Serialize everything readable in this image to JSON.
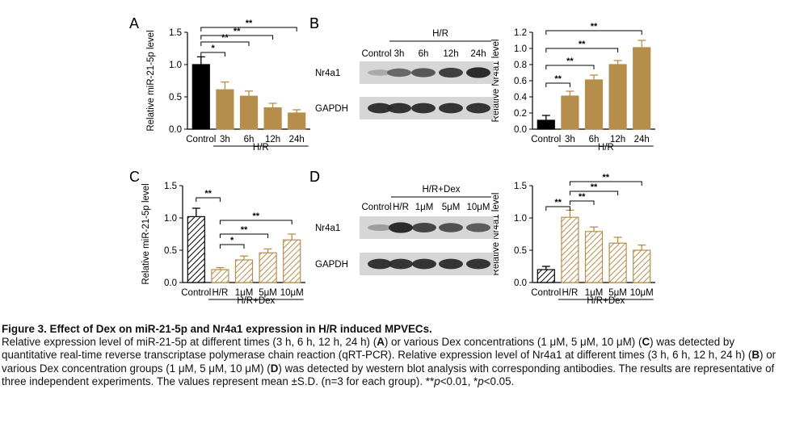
{
  "colors": {
    "control": "#000000",
    "treatment": "#b68e4c",
    "bar_edge": "#8a6a36",
    "axis": "#000000"
  },
  "panels": {
    "A": {
      "letter": "A",
      "type": "bar",
      "ylabel": "Relative miR-21-5p level",
      "ylim": [
        0,
        1.5
      ],
      "yticks": [
        "0.0",
        "0.5",
        "1.0",
        "1.5"
      ],
      "categories": [
        "Control",
        "3h",
        "6h",
        "12h",
        "24h"
      ],
      "values": [
        1.0,
        0.61,
        0.51,
        0.33,
        0.25
      ],
      "errors": [
        0.12,
        0.12,
        0.08,
        0.07,
        0.05
      ],
      "fill": [
        "solid-black",
        "solid",
        "solid",
        "solid",
        "solid"
      ],
      "group_label": "H/R",
      "sig": [
        "*",
        "**",
        "**",
        "**"
      ]
    },
    "B": {
      "letter": "B",
      "type": "bar",
      "ylabel": "Relative Nr4a1 level",
      "ylim": [
        0,
        1.2
      ],
      "yticks": [
        "0.0",
        "0.2",
        "0.4",
        "0.6",
        "0.8",
        "1.0",
        "1.2"
      ],
      "categories": [
        "Control",
        "3h",
        "6h",
        "12h",
        "24h"
      ],
      "values": [
        0.11,
        0.41,
        0.61,
        0.8,
        1.01
      ],
      "errors": [
        0.06,
        0.06,
        0.06,
        0.05,
        0.09
      ],
      "fill": [
        "solid-black",
        "solid",
        "solid",
        "solid",
        "solid"
      ],
      "group_label": "H/R",
      "sig": [
        "**",
        "**",
        "**",
        "**"
      ]
    },
    "C": {
      "letter": "C",
      "type": "bar",
      "ylabel": "Relative miR-21-5p level",
      "ylim": [
        0,
        1.5
      ],
      "yticks": [
        "0.0",
        "0.5",
        "1.0",
        "1.5"
      ],
      "categories": [
        "Control",
        "H/R",
        "1μM",
        "5μM",
        "10μM"
      ],
      "values": [
        1.02,
        0.2,
        0.35,
        0.46,
        0.66
      ],
      "errors": [
        0.13,
        0.03,
        0.06,
        0.06,
        0.09
      ],
      "fill": [
        "hatch-black",
        "hatch",
        "hatch",
        "hatch",
        "hatch"
      ],
      "group_label": "H/R+Dex",
      "sig": [
        "**",
        "*",
        "**",
        "**"
      ]
    },
    "D": {
      "letter": "D",
      "type": "bar",
      "ylabel": "Relative Nr4a1 level",
      "ylim": [
        0,
        1.5
      ],
      "yticks": [
        "0.0",
        "0.5",
        "1.0",
        "1.5"
      ],
      "categories": [
        "Control",
        "H/R",
        "1μM",
        "5μM",
        "10μM"
      ],
      "values": [
        0.2,
        1.01,
        0.79,
        0.61,
        0.5
      ],
      "errors": [
        0.05,
        0.11,
        0.07,
        0.09,
        0.08
      ],
      "fill": [
        "hatch-black",
        "hatch",
        "hatch",
        "hatch",
        "hatch"
      ],
      "group_label": "H/R+Dex",
      "sig": [
        "**",
        "**",
        "**",
        "**"
      ]
    }
  },
  "blots": {
    "B": {
      "letter": "B",
      "group_label": "H/R",
      "lanes": [
        "Control",
        "3h",
        "6h",
        "12h",
        "24h"
      ],
      "rows": [
        {
          "label": "Nr4a1",
          "intensity": [
            0.18,
            0.55,
            0.65,
            0.78,
            0.9
          ]
        },
        {
          "label": "GAPDH",
          "intensity": [
            0.85,
            0.85,
            0.85,
            0.85,
            0.85
          ]
        }
      ]
    },
    "D": {
      "letter": "D",
      "group_label": "H/R+Dex",
      "lanes": [
        "Control",
        "H/R",
        "1μM",
        "5μM",
        "10μM"
      ],
      "rows": [
        {
          "label": "Nr4a1",
          "intensity": [
            0.25,
            0.9,
            0.75,
            0.68,
            0.62
          ]
        },
        {
          "label": "GAPDH",
          "intensity": [
            0.85,
            0.85,
            0.85,
            0.85,
            0.85
          ]
        }
      ]
    }
  },
  "caption": {
    "title": "Figure 3. Effect of Dex on miR-21-5p and Nr4a1 expression in H/R induced MPVECs.",
    "p1": "Relative expression level of miR-21-5p at different times (3 h, 6 h, 12 h, 24 h) (",
    "b1": "A",
    "p2": ") or various Dex concentrations (1 μM, 5 μM, 10 μM) (",
    "b2": "C",
    "p3": ") was detected by quantitative real-time reverse transcriptase polymerase chain reaction (qRT-PCR). Relative expression level of Nr4a1 at different times (3 h, 6 h, 12 h, 24 h) (",
    "b3": "B",
    "p4": ") or various Dex concentration groups (1 μM, 5 μM, 10 μM) (",
    "b4": "D",
    "p5": ") was detected by western blot analysis with corresponding antibodies. The results are representative of three independent experiments. The values represent mean ±S.D. (n=3 for each group). **",
    "i1": "p",
    "p6": "<0.01, *",
    "i2": "p",
    "p7": "<0.05."
  },
  "chart_data": [
    {
      "type": "bar",
      "title": "A",
      "ylabel": "Relative miR-21-5p level",
      "categories": [
        "Control",
        "3h",
        "6h",
        "12h",
        "24h"
      ],
      "values": [
        1.0,
        0.61,
        0.51,
        0.33,
        0.25
      ],
      "ylim": [
        0,
        1.5
      ]
    },
    {
      "type": "bar",
      "title": "B",
      "ylabel": "Relative Nr4a1 level",
      "categories": [
        "Control",
        "3h",
        "6h",
        "12h",
        "24h"
      ],
      "values": [
        0.11,
        0.41,
        0.61,
        0.8,
        1.01
      ],
      "ylim": [
        0,
        1.2
      ]
    },
    {
      "type": "bar",
      "title": "C",
      "ylabel": "Relative miR-21-5p level",
      "categories": [
        "Control",
        "H/R",
        "1μM",
        "5μM",
        "10μM"
      ],
      "values": [
        1.02,
        0.2,
        0.35,
        0.46,
        0.66
      ],
      "ylim": [
        0,
        1.5
      ]
    },
    {
      "type": "bar",
      "title": "D",
      "ylabel": "Relative Nr4a1 level",
      "categories": [
        "Control",
        "H/R",
        "1μM",
        "5μM",
        "10μM"
      ],
      "values": [
        0.2,
        1.01,
        0.79,
        0.61,
        0.5
      ],
      "ylim": [
        0,
        1.5
      ]
    }
  ]
}
